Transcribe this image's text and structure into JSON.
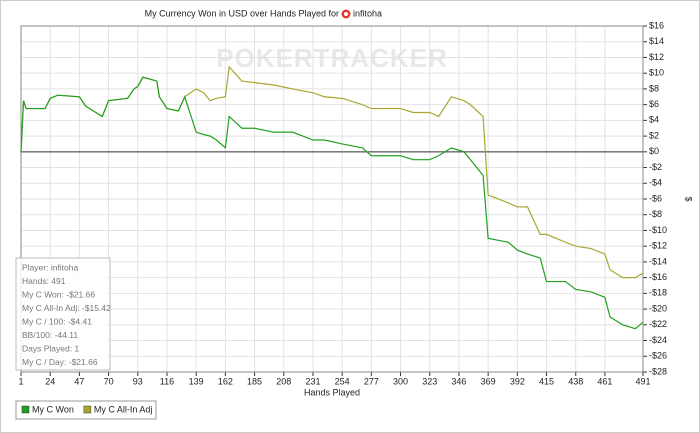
{
  "chart_data": {
    "type": "line",
    "title": "My Currency Won in USD over Hands Played for",
    "title_player": "infitoha",
    "watermark": "POKERTRACKER",
    "xlabel": "Hands Played",
    "ylabel": "$",
    "x": [
      1,
      3,
      5,
      20,
      24,
      30,
      47,
      52,
      60,
      65,
      70,
      85,
      90,
      93,
      97,
      108,
      110,
      116,
      125,
      130,
      139,
      145,
      150,
      155,
      162,
      165,
      175,
      185,
      200,
      215,
      231,
      240,
      254,
      270,
      277,
      300,
      310,
      323,
      330,
      340,
      350,
      355,
      365,
      369,
      385,
      392,
      400,
      410,
      415,
      430,
      438,
      450,
      461,
      465,
      475,
      485,
      491
    ],
    "series": [
      {
        "name": "My C Won",
        "color": "#22a022",
        "values": [
          0,
          6.5,
          5.5,
          5.5,
          6.8,
          7.2,
          7,
          5.8,
          5,
          4.5,
          6.5,
          6.8,
          8,
          8.3,
          9.5,
          9,
          7,
          5.5,
          5.2,
          7,
          2.5,
          2.2,
          2,
          1.5,
          0.5,
          4.5,
          3,
          3,
          2.5,
          2.5,
          1.5,
          1.5,
          1,
          0.5,
          -0.5,
          -0.5,
          -1,
          -1,
          -0.5,
          0.5,
          0,
          -1,
          -3,
          -11,
          -11.5,
          -12.5,
          -13,
          -13.5,
          -16.5,
          -16.5,
          -17.5,
          -17.8,
          -18.5,
          -21,
          -22,
          -22.5,
          -21.66
        ]
      },
      {
        "name": "My C All-In Adj",
        "color": "#a8a830",
        "values": [
          0,
          6.5,
          5.5,
          5.5,
          6.8,
          7.2,
          7,
          5.8,
          5,
          4.5,
          6.5,
          6.8,
          8,
          8.3,
          9.5,
          9,
          7,
          5.5,
          5.2,
          7,
          8,
          7.5,
          6.5,
          6.8,
          7,
          10.8,
          9,
          8.8,
          8.5,
          8,
          7.5,
          7,
          6.8,
          6,
          5.5,
          5.5,
          5,
          5,
          4.5,
          7,
          6.5,
          6,
          4.5,
          -5.5,
          -6.5,
          -7,
          -7,
          -10.5,
          -10.5,
          -11.5,
          -12,
          -12.3,
          -13,
          -15,
          -16,
          -16,
          -15.42
        ]
      }
    ],
    "xlim": [
      1,
      491
    ],
    "ylim": [
      -28,
      16
    ],
    "xticks": [
      1,
      24,
      47,
      70,
      93,
      116,
      139,
      162,
      185,
      208,
      231,
      254,
      277,
      300,
      323,
      346,
      369,
      392,
      415,
      438,
      461,
      491
    ],
    "yticks": [
      {
        "value": -28,
        "label": "-$28"
      },
      {
        "value": -26,
        "label": "-$26"
      },
      {
        "value": -24,
        "label": "-$24"
      },
      {
        "value": -22,
        "label": "-$22"
      },
      {
        "value": -20,
        "label": "-$20"
      },
      {
        "value": -18,
        "label": "-$18"
      },
      {
        "value": -16,
        "label": "-$16"
      },
      {
        "value": -14,
        "label": "-$14"
      },
      {
        "value": -12,
        "label": "-$12"
      },
      {
        "value": -10,
        "label": "-$10"
      },
      {
        "value": -8,
        "label": "-$8"
      },
      {
        "value": -6,
        "label": "-$6"
      },
      {
        "value": -4,
        "label": "-$4"
      },
      {
        "value": -2,
        "label": "-$2"
      },
      {
        "value": 0,
        "label": "$0"
      },
      {
        "value": 2,
        "label": "$2"
      },
      {
        "value": 4,
        "label": "$4"
      },
      {
        "value": 6,
        "label": "$6"
      },
      {
        "value": 8,
        "label": "$8"
      },
      {
        "value": 10,
        "label": "$10"
      },
      {
        "value": 12,
        "label": "$12"
      },
      {
        "value": 14,
        "label": "$14"
      },
      {
        "value": 16,
        "label": "$16"
      }
    ],
    "grid": true,
    "legend": "bottom-left",
    "info_box": [
      "Player: infitoha",
      "Hands: 491",
      "My C Won: -$21.66",
      "My C All-In Adj: -$15.42",
      "My C / 100: -$4.41",
      "BB/100: -44.11",
      "Days Played: 1",
      "My C / Day: -$21.66"
    ]
  }
}
